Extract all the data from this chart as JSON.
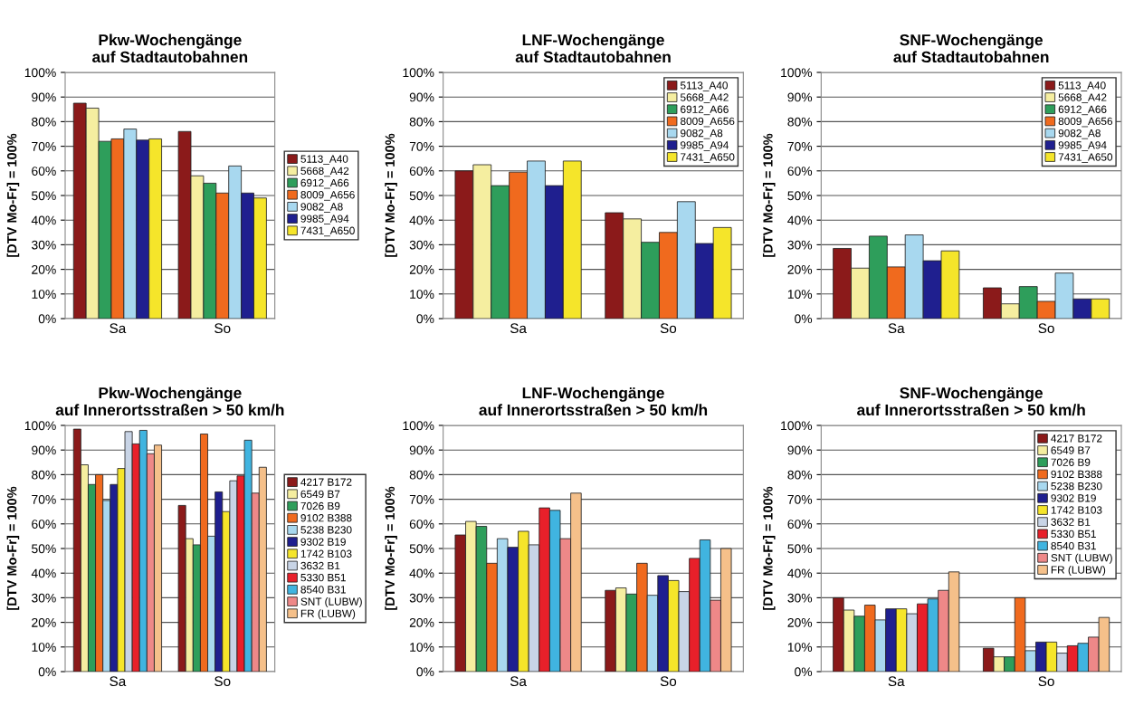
{
  "chart_data": [
    {
      "type": "bar",
      "title": "Pkw-Wochengänge\nauf Stadtautobahnen",
      "ylabel": "[DTV Mo-Fr] = 100%",
      "categories": [
        "Sa",
        "So"
      ],
      "ylim": [
        0,
        100
      ],
      "yticks": [
        {
          "value": 0,
          "label": "0%"
        },
        {
          "value": 10,
          "label": "10%"
        },
        {
          "value": 20,
          "label": "20%"
        },
        {
          "value": 30,
          "label": "30%"
        },
        {
          "value": 40,
          "label": "40%"
        },
        {
          "value": 50,
          "label": "50%"
        },
        {
          "value": 60,
          "label": "60%"
        },
        {
          "value": 70,
          "label": "70%"
        },
        {
          "value": 80,
          "label": "80%"
        },
        {
          "value": 90,
          "label": "90%"
        },
        {
          "value": 100,
          "label": "100%"
        }
      ],
      "grid": "y",
      "legend": "right",
      "series": [
        {
          "name": "5113_A40",
          "color": "#8b1a1a",
          "values": [
            87.5,
            76
          ]
        },
        {
          "name": "5668_A42",
          "color": "#f5eea0",
          "values": [
            85.5,
            58
          ]
        },
        {
          "name": "6912_A66",
          "color": "#2e9e5b",
          "values": [
            72,
            55
          ]
        },
        {
          "name": "8009_A656",
          "color": "#f06a1e",
          "values": [
            73,
            51
          ]
        },
        {
          "name": "9082_A8",
          "color": "#a8d8ef",
          "values": [
            77,
            62
          ]
        },
        {
          "name": "9985_A94",
          "color": "#1f1f8f",
          "values": [
            72.5,
            51
          ]
        },
        {
          "name": "7431_A650",
          "color": "#f5e52a",
          "values": [
            73,
            49
          ]
        }
      ]
    },
    {
      "type": "bar",
      "title": "LNF-Wochengänge\nauf Stadtautobahnen",
      "ylabel": "[DTV Mo-Fr] = 100%",
      "categories": [
        "Sa",
        "So"
      ],
      "ylim": [
        0,
        100
      ],
      "yticks": [
        {
          "value": 0,
          "label": "0%"
        },
        {
          "value": 10,
          "label": "10%"
        },
        {
          "value": 20,
          "label": "20%"
        },
        {
          "value": 30,
          "label": "30%"
        },
        {
          "value": 40,
          "label": "40%"
        },
        {
          "value": 50,
          "label": "50%"
        },
        {
          "value": 60,
          "label": "60%"
        },
        {
          "value": 70,
          "label": "70%"
        },
        {
          "value": 80,
          "label": "80%"
        },
        {
          "value": 90,
          "label": "90%"
        },
        {
          "value": 100,
          "label": "100%"
        }
      ],
      "grid": "y",
      "legend": "top right",
      "series": [
        {
          "name": "5113_A40",
          "color": "#8b1a1a",
          "values": [
            60,
            43
          ]
        },
        {
          "name": "5668_A42",
          "color": "#f5eea0",
          "values": [
            62.5,
            40.5
          ]
        },
        {
          "name": "6912_A66",
          "color": "#2e9e5b",
          "values": [
            54,
            31
          ]
        },
        {
          "name": "8009_A656",
          "color": "#f06a1e",
          "values": [
            59.5,
            35
          ]
        },
        {
          "name": "9082_A8",
          "color": "#a8d8ef",
          "values": [
            64,
            47.5
          ]
        },
        {
          "name": "9985_A94",
          "color": "#1f1f8f",
          "values": [
            54,
            30.5
          ]
        },
        {
          "name": "7431_A650",
          "color": "#f5e52a",
          "values": [
            64,
            37
          ]
        }
      ]
    },
    {
      "type": "bar",
      "title": "SNF-Wochengänge\nauf Stadtautobahnen",
      "ylabel": "[DTV Mo-Fr] = 100%",
      "categories": [
        "Sa",
        "So"
      ],
      "ylim": [
        0,
        100
      ],
      "yticks": [
        {
          "value": 0,
          "label": "0%"
        },
        {
          "value": 10,
          "label": "10%"
        },
        {
          "value": 20,
          "label": "20%"
        },
        {
          "value": 30,
          "label": "30%"
        },
        {
          "value": 40,
          "label": "40%"
        },
        {
          "value": 50,
          "label": "50%"
        },
        {
          "value": 60,
          "label": "60%"
        },
        {
          "value": 70,
          "label": "70%"
        },
        {
          "value": 80,
          "label": "80%"
        },
        {
          "value": 90,
          "label": "90%"
        },
        {
          "value": 100,
          "label": "100%"
        }
      ],
      "grid": "y",
      "legend": "top right",
      "series": [
        {
          "name": "5113_A40",
          "color": "#8b1a1a",
          "values": [
            28.5,
            12.5
          ]
        },
        {
          "name": "5668_A42",
          "color": "#f5eea0",
          "values": [
            20.5,
            6
          ]
        },
        {
          "name": "6912_A66",
          "color": "#2e9e5b",
          "values": [
            33.5,
            13
          ]
        },
        {
          "name": "8009_A656",
          "color": "#f06a1e",
          "values": [
            21,
            7
          ]
        },
        {
          "name": "9082_A8",
          "color": "#a8d8ef",
          "values": [
            34,
            18.5
          ]
        },
        {
          "name": "9985_A94",
          "color": "#1f1f8f",
          "values": [
            23.5,
            8
          ]
        },
        {
          "name": "7431_A650",
          "color": "#f5e52a",
          "values": [
            27.5,
            8
          ]
        }
      ]
    },
    {
      "type": "bar",
      "title": "Pkw-Wochengänge\nauf Innerortsstraßen > 50 km/h",
      "ylabel": "[DTV Mo-Fr] = 100%",
      "categories": [
        "Sa",
        "So"
      ],
      "ylim": [
        0,
        100
      ],
      "yticks": [
        {
          "value": 0,
          "label": "0%"
        },
        {
          "value": 10,
          "label": "10%"
        },
        {
          "value": 20,
          "label": "20%"
        },
        {
          "value": 30,
          "label": "30%"
        },
        {
          "value": 40,
          "label": "40%"
        },
        {
          "value": 50,
          "label": "50%"
        },
        {
          "value": 60,
          "label": "60%"
        },
        {
          "value": 70,
          "label": "70%"
        },
        {
          "value": 80,
          "label": "80%"
        },
        {
          "value": 90,
          "label": "90%"
        },
        {
          "value": 100,
          "label": "100%"
        }
      ],
      "grid": "y",
      "legend": "right",
      "series": [
        {
          "name": "4217 B172",
          "color": "#8b1a1a",
          "values": [
            98.5,
            67.5
          ]
        },
        {
          "name": "6549 B7",
          "color": "#f5eea0",
          "values": [
            84,
            54
          ]
        },
        {
          "name": "7026 B9",
          "color": "#2e9e5b",
          "values": [
            76,
            51.5
          ]
        },
        {
          "name": "9102 B388",
          "color": "#f06a1e",
          "values": [
            80,
            96.5
          ]
        },
        {
          "name": "5238 B230",
          "color": "#a8d8ef",
          "values": [
            69.5,
            55
          ]
        },
        {
          "name": "9302 B19",
          "color": "#1f1f8f",
          "values": [
            76,
            73
          ]
        },
        {
          "name": "1742 B103",
          "color": "#f5e52a",
          "values": [
            82.5,
            65
          ]
        },
        {
          "name": "3632 B1",
          "color": "#c8d4e6",
          "values": [
            97.5,
            77.5
          ]
        },
        {
          "name": "5330 B51",
          "color": "#e8202a",
          "values": [
            92.5,
            79.5
          ]
        },
        {
          "name": "8540 B31",
          "color": "#40b4e0",
          "values": [
            98,
            94
          ]
        },
        {
          "name": "SNT (LUBW)",
          "color": "#ee8888",
          "values": [
            88.5,
            72.5
          ]
        },
        {
          "name": "FR (LUBW)",
          "color": "#f5c08a",
          "values": [
            92,
            83
          ]
        }
      ]
    },
    {
      "type": "bar",
      "title": "LNF-Wochengänge\nauf Innerortsstraßen > 50 km/h",
      "ylabel": "[DTV Mo-Fr] = 100%",
      "categories": [
        "Sa",
        "So"
      ],
      "ylim": [
        0,
        100
      ],
      "yticks": [
        {
          "value": 0,
          "label": "0%"
        },
        {
          "value": 10,
          "label": "10%"
        },
        {
          "value": 20,
          "label": "20%"
        },
        {
          "value": 30,
          "label": "30%"
        },
        {
          "value": 40,
          "label": "40%"
        },
        {
          "value": 50,
          "label": "50%"
        },
        {
          "value": 60,
          "label": "60%"
        },
        {
          "value": 70,
          "label": "70%"
        },
        {
          "value": 80,
          "label": "80%"
        },
        {
          "value": 90,
          "label": "90%"
        },
        {
          "value": 100,
          "label": "100%"
        }
      ],
      "grid": "y",
      "series": [
        {
          "color": "#8b1a1a",
          "values": [
            55.5,
            33
          ]
        },
        {
          "color": "#f5eea0",
          "values": [
            61,
            34
          ]
        },
        {
          "color": "#2e9e5b",
          "values": [
            59,
            31.5
          ]
        },
        {
          "color": "#f06a1e",
          "values": [
            44,
            44
          ]
        },
        {
          "color": "#a8d8ef",
          "values": [
            54,
            31
          ]
        },
        {
          "color": "#1f1f8f",
          "values": [
            50.5,
            39
          ]
        },
        {
          "color": "#f5e52a",
          "values": [
            57,
            37
          ]
        },
        {
          "color": "#c8d4e6",
          "values": [
            51.5,
            32.5
          ]
        },
        {
          "color": "#e8202a",
          "values": [
            66.5,
            46
          ]
        },
        {
          "color": "#40b4e0",
          "values": [
            65.5,
            53.5
          ]
        },
        {
          "color": "#ee8888",
          "values": [
            54,
            29
          ]
        },
        {
          "color": "#f5c08a",
          "values": [
            72.5,
            50
          ]
        }
      ]
    },
    {
      "type": "bar",
      "title": "SNF-Wochengänge\nauf Innerortsstraßen > 50 km/h",
      "ylabel": "[DTV Mo-Fr] = 100%",
      "categories": [
        "Sa",
        "So"
      ],
      "ylim": [
        0,
        100
      ],
      "yticks": [
        {
          "value": 0,
          "label": "0%"
        },
        {
          "value": 10,
          "label": "10%"
        },
        {
          "value": 20,
          "label": "20%"
        },
        {
          "value": 30,
          "label": "30%"
        },
        {
          "value": 40,
          "label": "40%"
        },
        {
          "value": 50,
          "label": "50%"
        },
        {
          "value": 60,
          "label": "60%"
        },
        {
          "value": 70,
          "label": "70%"
        },
        {
          "value": 80,
          "label": "80%"
        },
        {
          "value": 90,
          "label": "90%"
        },
        {
          "value": 100,
          "label": "100%"
        }
      ],
      "grid": "y",
      "legend": "top right",
      "series": [
        {
          "name": "4217 B172",
          "color": "#8b1a1a",
          "values": [
            30,
            9.5
          ]
        },
        {
          "name": "6549 B7",
          "color": "#f5eea0",
          "values": [
            25,
            6
          ]
        },
        {
          "name": "7026 B9",
          "color": "#2e9e5b",
          "values": [
            22.5,
            6
          ]
        },
        {
          "name": "9102 B388",
          "color": "#f06a1e",
          "values": [
            27,
            30
          ]
        },
        {
          "name": "5238 B230",
          "color": "#a8d8ef",
          "values": [
            21,
            8.5
          ]
        },
        {
          "name": "9302 B19",
          "color": "#1f1f8f",
          "values": [
            25.5,
            12
          ]
        },
        {
          "name": "1742 B103",
          "color": "#f5e52a",
          "values": [
            25.5,
            12
          ]
        },
        {
          "name": "3632 B1",
          "color": "#c8d4e6",
          "values": [
            23.5,
            7.5
          ]
        },
        {
          "name": "5330 B51",
          "color": "#e8202a",
          "values": [
            27.5,
            10.5
          ]
        },
        {
          "name": "8540 B31",
          "color": "#40b4e0",
          "values": [
            29.5,
            11.5
          ]
        },
        {
          "name": "SNT (LUBW)",
          "color": "#ee8888",
          "values": [
            33,
            14
          ]
        },
        {
          "name": "FR (LUBW)",
          "color": "#f5c08a",
          "values": [
            40.5,
            22
          ]
        }
      ]
    }
  ]
}
